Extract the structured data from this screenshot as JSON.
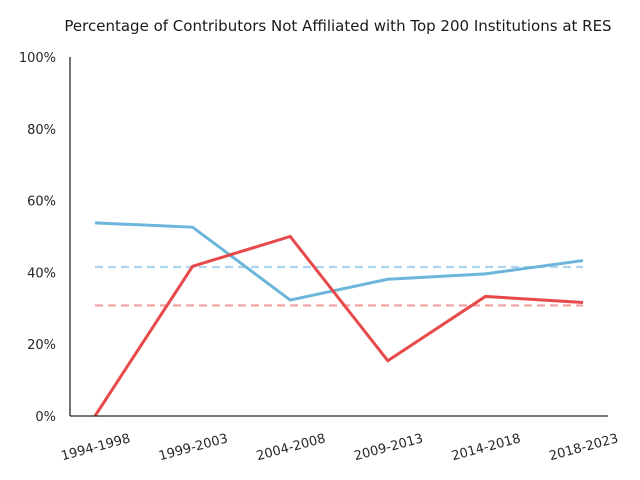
{
  "chart_data": {
    "type": "line",
    "title": "Percentage of Contributors Not Affiliated with Top 200 Institutions at RES",
    "xlabel": "",
    "ylabel": "",
    "categories": [
      "1994-1998",
      "1999-2003",
      "2004-2008",
      "2009-2013",
      "2014-2018",
      "2018-2023"
    ],
    "ylim": [
      0,
      100
    ],
    "yticks": [
      0,
      20,
      40,
      60,
      80,
      100
    ],
    "ytick_labels": [
      "0%",
      "20%",
      "40%",
      "60%",
      "80%",
      "100%"
    ],
    "grid": false,
    "legend": "none",
    "series": [
      {
        "color": "#6bb6da",
        "style": "solid",
        "values": [
          53.8,
          52.6,
          32.3,
          38.1,
          39.6,
          43.3
        ]
      },
      {
        "color": "#e8494a",
        "style": "solid",
        "values": [
          0.0,
          41.7,
          50.0,
          15.4,
          33.3,
          31.6
        ]
      }
    ],
    "reference_lines": [
      {
        "color": "#aed6f1",
        "style": "dashed",
        "value": 41.5
      },
      {
        "color": "#f0a0a0",
        "style": "dashed",
        "value": 30.8
      }
    ]
  }
}
